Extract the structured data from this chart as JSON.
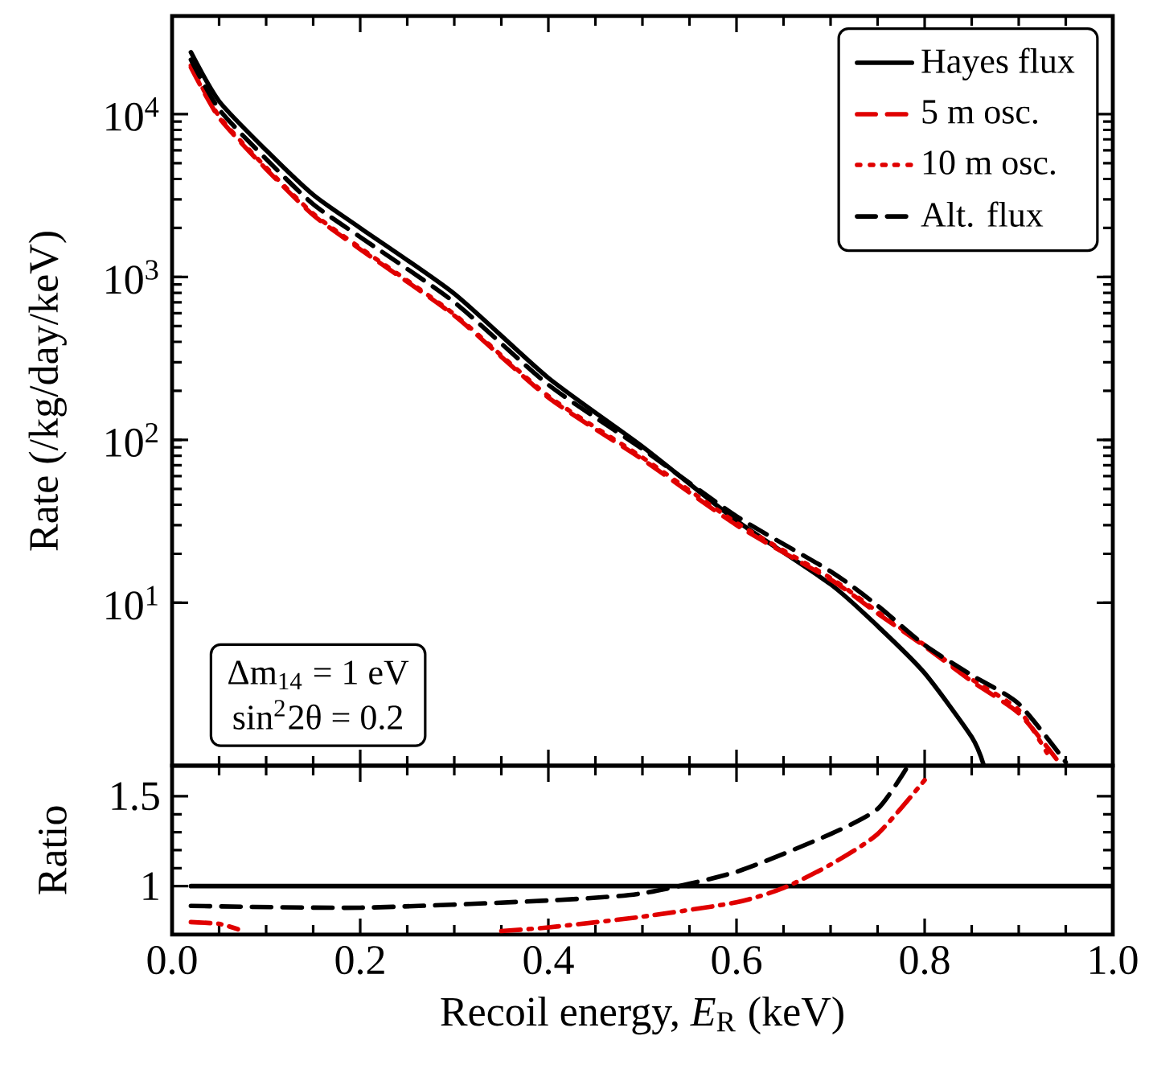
{
  "chart_data": [
    {
      "type": "line",
      "ylabel": "Rate (/kg/day/keV)",
      "log": "y",
      "legend": "top right",
      "tick_labels": "y",
      "xlim": [
        0,
        1
      ],
      "xticks": [
        {
          "value": 0,
          "label": null
        },
        {
          "value": 0.2,
          "label": null
        },
        {
          "value": 0.4,
          "label": null
        },
        {
          "value": 0.6,
          "label": null
        },
        {
          "value": 0.8,
          "label": null
        },
        {
          "value": 1,
          "label": null
        }
      ],
      "ylim": [
        1,
        40000
      ],
      "yticks": [
        {
          "value": 10,
          "label": "10$^{1}$"
        },
        {
          "value": 100,
          "label": "10$^{2}$"
        },
        {
          "value": 1000,
          "label": "10$^{3}$"
        },
        {
          "value": 10000,
          "label": "10$^{4}$"
        }
      ],
      "annotations": [
        "Δm$_{14}$ = 1 eV",
        "sin$^{2}$2θ = 0.2"
      ],
      "series": [
        {
          "name": "Hayes flux",
          "color": "#000000",
          "line_style": "solid",
          "x": [
            0.02,
            0.05,
            0.1,
            0.15,
            0.2,
            0.3,
            0.4,
            0.5,
            0.6,
            0.7,
            0.75,
            0.8,
            0.85,
            0.863
          ],
          "values": [
            24000,
            12000,
            6000,
            3200,
            2000,
            790,
            240,
            91,
            32,
            13,
            7.2,
            3.7,
            1.5,
            1.0
          ]
        },
        {
          "name": "5 m osc.",
          "color": "#e00000",
          "line_style": "dashed",
          "x": [
            0.02,
            0.05,
            0.1,
            0.15,
            0.2,
            0.3,
            0.4,
            0.5,
            0.6,
            0.7,
            0.75,
            0.8,
            0.85,
            0.9,
            0.94
          ],
          "values": [
            19400,
            9500,
            4600,
            2400,
            1480,
            580,
            182,
            76,
            30,
            13.9,
            8.6,
            5.4,
            3.3,
            2.1,
            1.1
          ]
        },
        {
          "name": "10 m osc.",
          "color": "#e00000",
          "line_style": "dotted",
          "x": [
            0.02,
            0.05,
            0.1,
            0.15,
            0.2,
            0.3,
            0.4,
            0.5,
            0.6,
            0.7,
            0.75,
            0.8,
            0.85,
            0.9,
            0.93
          ],
          "values": [
            19900,
            9700,
            4700,
            2450,
            1510,
            590,
            186,
            78,
            31,
            14.2,
            8.8,
            5.5,
            3.4,
            2.2,
            1.2
          ]
        },
        {
          "name": "Alt. flux",
          "color": "#000000",
          "line_style": "dashed",
          "x": [
            0.02,
            0.05,
            0.1,
            0.15,
            0.2,
            0.3,
            0.4,
            0.5,
            0.6,
            0.7,
            0.75,
            0.8,
            0.85,
            0.9,
            0.95
          ],
          "values": [
            21600,
            10700,
            5300,
            2800,
            1760,
            700,
            218,
            88,
            34,
            15.6,
            9.6,
            5.5,
            3.6,
            2.4,
            1.05
          ]
        }
      ]
    },
    {
      "type": "line",
      "xlabel": "Recoil energy, *E*$_{R}$ (keV)",
      "ylabel": "Ratio",
      "xlim": [
        0,
        1
      ],
      "xticks": [
        {
          "value": 0,
          "label": "0.0"
        },
        0.2,
        0.4,
        0.6,
        0.8,
        {
          "value": 1,
          "label": "1.0"
        }
      ],
      "ylim": [
        0.73,
        1.67
      ],
      "yticks": [
        1,
        1.5
      ],
      "series": [
        {
          "color": "#000000",
          "line_style": "solid",
          "x": [
            0.02,
            1.0
          ],
          "values": [
            1,
            1
          ]
        },
        {
          "color": "#000000",
          "line_style": "dashed",
          "x": [
            0.02,
            0.2,
            0.4,
            0.5,
            0.6,
            0.7,
            0.75,
            0.78
          ],
          "values": [
            0.89,
            0.88,
            0.92,
            0.96,
            1.08,
            1.29,
            1.43,
            1.65
          ]
        },
        {
          "color": "#e00000",
          "line_style": "dashdot",
          "x": [
            0.02,
            0.05,
            0.07,
            0.2,
            0.35,
            0.4,
            0.5,
            0.6,
            0.65,
            0.7,
            0.75,
            0.8
          ],
          "values": [
            0.8,
            0.79,
            0.76,
            null,
            0.75,
            0.77,
            0.83,
            0.91,
            0.99,
            1.12,
            1.29,
            1.59
          ]
        }
      ]
    }
  ]
}
